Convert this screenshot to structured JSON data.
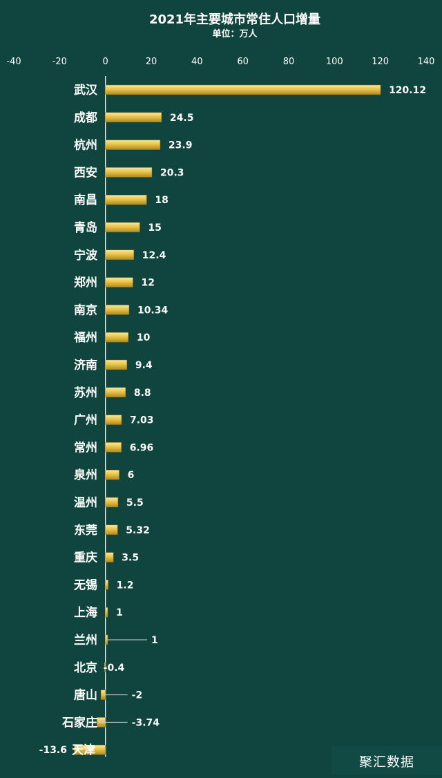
{
  "chart_data": {
    "type": "bar",
    "orientation": "horizontal",
    "title": "2021年主要城市常住人口增量",
    "subtitle": "单位：万人",
    "xlim": [
      -40,
      140
    ],
    "x_ticks": [
      -40,
      -20,
      0,
      20,
      40,
      60,
      80,
      100,
      120,
      140
    ],
    "categories": [
      "武汉",
      "成都",
      "杭州",
      "西安",
      "南昌",
      "青岛",
      "宁波",
      "郑州",
      "南京",
      "福州",
      "济南",
      "苏州",
      "广州",
      "常州",
      "泉州",
      "温州",
      "东莞",
      "重庆",
      "无锡",
      "上海",
      "兰州",
      "北京",
      "唐山",
      "石家庄",
      "天津"
    ],
    "values": [
      120.12,
      24.5,
      23.9,
      20.3,
      18,
      15,
      12.4,
      12,
      10.34,
      10,
      9.4,
      8.8,
      7.03,
      6.96,
      6,
      5.5,
      5.32,
      3.5,
      1.2,
      1,
      1,
      -0.4,
      -2,
      -3.74,
      -13.6
    ],
    "value_labels": [
      "120.12",
      "24.5",
      "23.9",
      "20.3",
      "18",
      "15",
      "12.4",
      "12",
      "10.34",
      "10",
      "9.4",
      "8.8",
      "7.03",
      "6.96",
      "6",
      "5.5",
      "5.32",
      "3.5",
      "1.2",
      "1",
      "1",
      "-0.4",
      "-2",
      "-3.74",
      "-13.6"
    ],
    "bar_color": "#e8c24a",
    "background_color": "#10453f",
    "grid": false,
    "legend": "none"
  },
  "watermark": "聚汇数据"
}
